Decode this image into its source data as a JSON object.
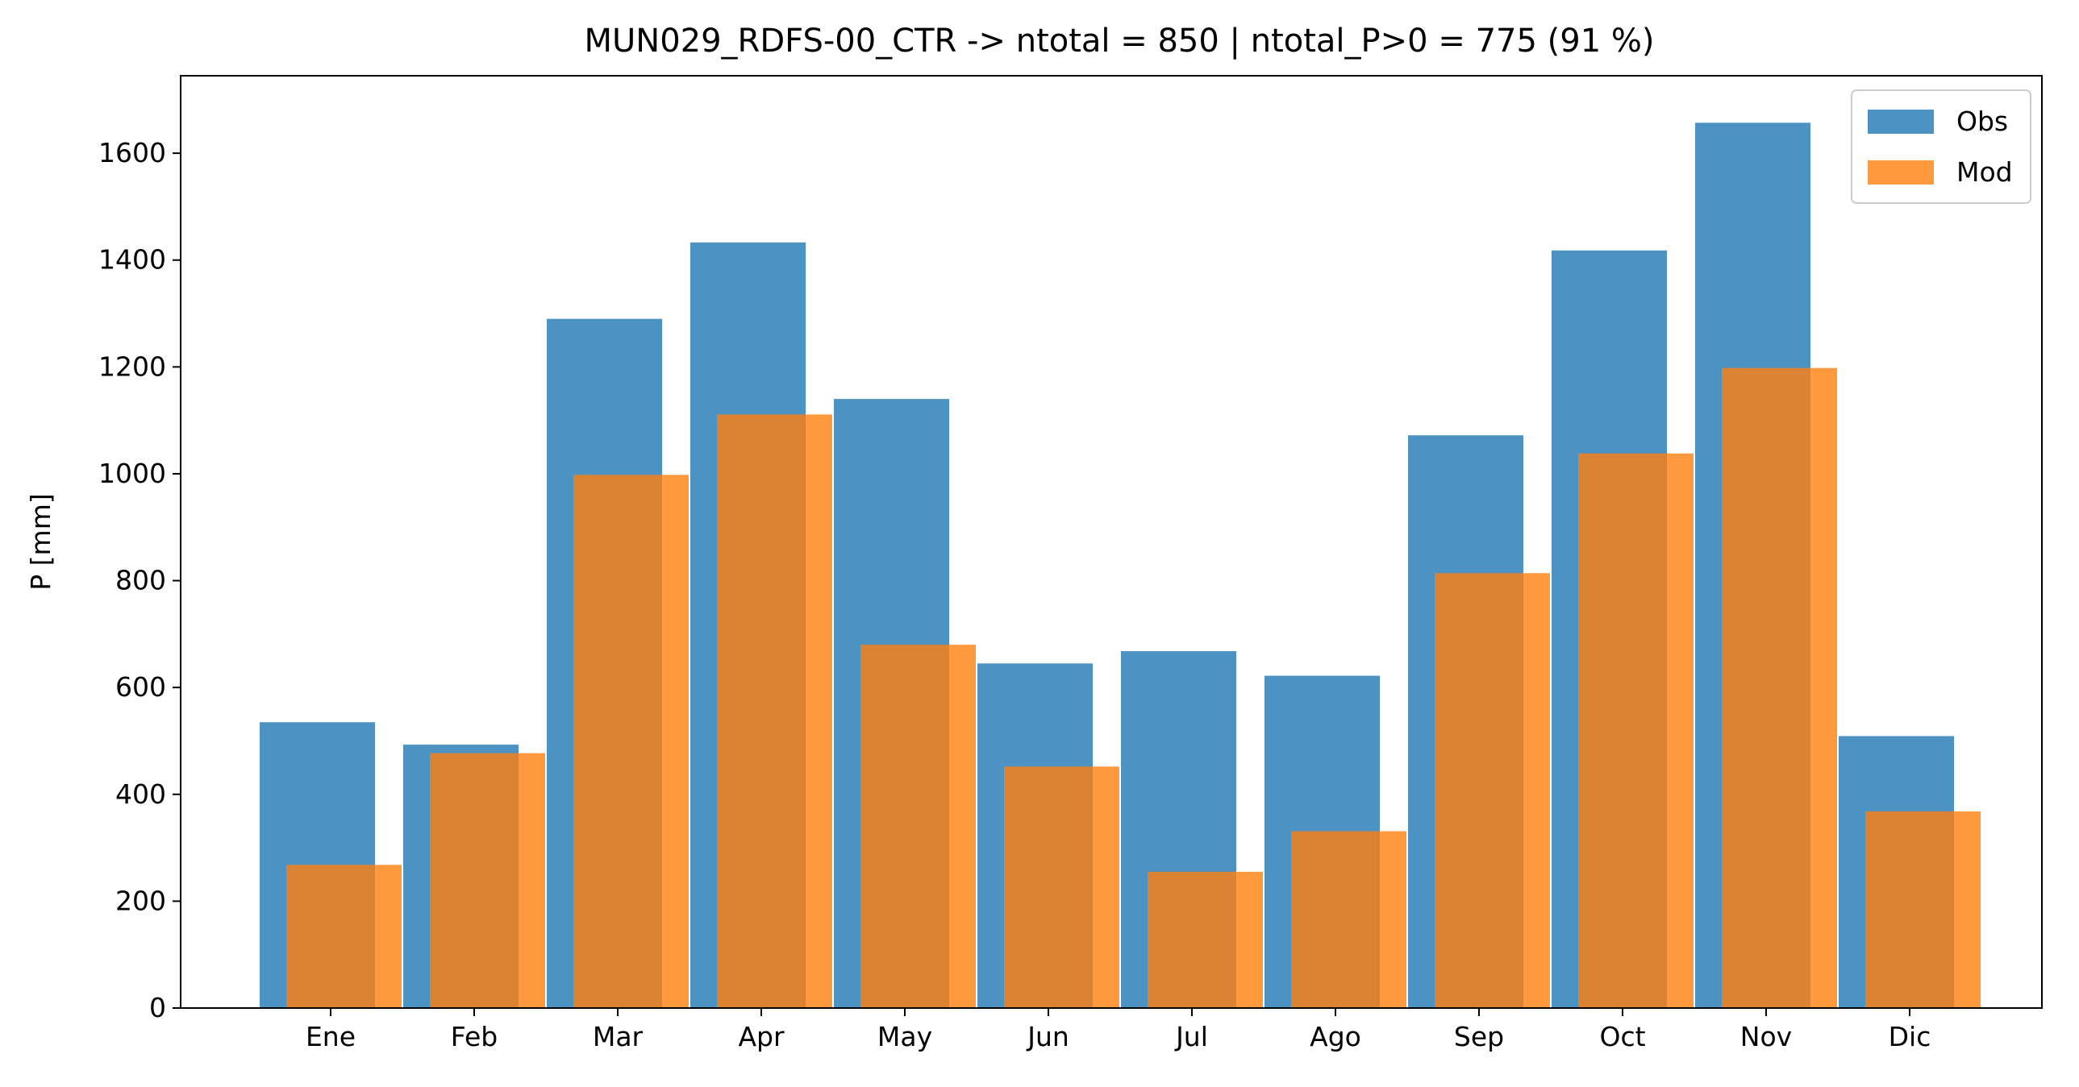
{
  "chart_data": {
    "type": "bar",
    "title": "MUN029_RDFS-00_CTR -> ntotal = 850 | ntotal_P>0 = 775 (91 %)",
    "xlabel": "",
    "ylabel": "P [mm]",
    "categories": [
      "Ene",
      "Feb",
      "Mar",
      "Apr",
      "May",
      "Jun",
      "Jul",
      "Ago",
      "Sep",
      "Oct",
      "Nov",
      "Dic"
    ],
    "series": [
      {
        "name": "Obs",
        "color": "#1f77b4",
        "opacity": 0.8,
        "values": [
          535,
          493,
          1290,
          1433,
          1140,
          645,
          668,
          622,
          1072,
          1418,
          1657,
          509
        ]
      },
      {
        "name": "Mod",
        "color": "#ff7f0e",
        "opacity": 0.8,
        "values": [
          268,
          477,
          998,
          1111,
          680,
          452,
          255,
          331,
          814,
          1038,
          1198,
          368
        ]
      }
    ],
    "ylim": [
      0,
      1745
    ],
    "yticks": [
      0,
      200,
      400,
      600,
      800,
      1000,
      1200,
      1400,
      1600
    ],
    "legend_position": "top-right",
    "grid": false
  }
}
